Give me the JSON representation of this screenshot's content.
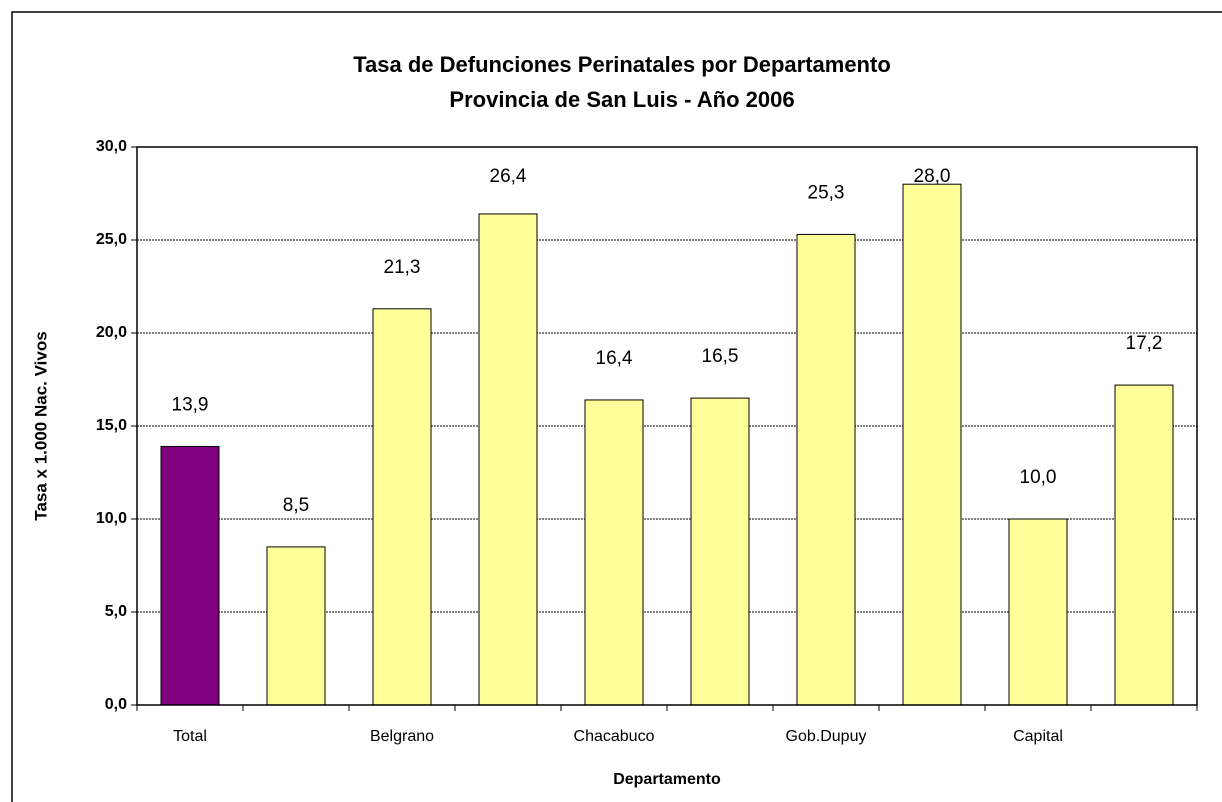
{
  "chart_data": {
    "type": "bar",
    "title": "Tasa de Defunciones Perinatales por Departamento",
    "subtitle": "Provincia de San Luis - Año 2006",
    "x_label": "Departamento",
    "y_label": "Tasa x 1.000 Nac. Vivos",
    "categories": [
      "Total",
      null,
      "Belgrano",
      null,
      "Chacabuco",
      null,
      "Gob.Dupuy",
      null,
      "Capital",
      null
    ],
    "values": [
      13.9,
      8.5,
      21.3,
      26.4,
      16.4,
      16.5,
      25.3,
      28.0,
      10.0,
      17.2
    ],
    "value_labels": [
      "13,9",
      "8,5",
      "21,3",
      "26,4",
      "16,4",
      "16,5",
      "25,3",
      "28,0",
      "10,0",
      "17,2"
    ],
    "colors": [
      "#800080",
      "#ffff99",
      "#ffff99",
      "#ffff99",
      "#ffff99",
      "#ffff99",
      "#ffff99",
      "#ffff99",
      "#ffff99",
      "#ffff99"
    ],
    "ylim": [
      0,
      30
    ],
    "yticks": [
      {
        "value": 0,
        "label": "0,0"
      },
      {
        "value": 5,
        "label": "5,0"
      },
      {
        "value": 10,
        "label": "10,0"
      },
      {
        "value": 15,
        "label": "15,0"
      },
      {
        "value": 20,
        "label": "20,0"
      },
      {
        "value": 25,
        "label": "25,0"
      },
      {
        "value": 30,
        "label": "30,0"
      }
    ],
    "grid": true
  }
}
